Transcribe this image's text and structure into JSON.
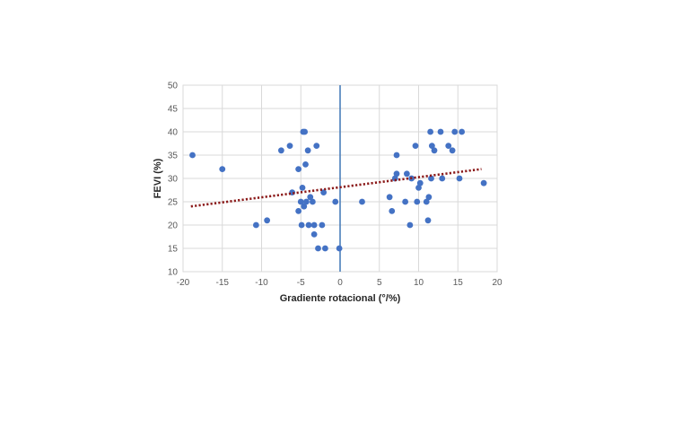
{
  "chart_data": {
    "type": "scatter",
    "xlabel": "Gradiente rotacional (°/%)",
    "ylabel": "FEVI (%)",
    "xlim": [
      -20,
      20
    ],
    "ylim": [
      10,
      50
    ],
    "xticks": [
      -20,
      -15,
      -10,
      -5,
      0,
      5,
      10,
      15,
      20
    ],
    "yticks": [
      10,
      15,
      20,
      25,
      30,
      35,
      40,
      45,
      50
    ],
    "grid": true,
    "legend": "none",
    "colors": {
      "points": "#4472c4",
      "trendline": "#8b1a1a",
      "zero_line": "#4a7ebb",
      "grid": "#d9d9d9"
    },
    "vertical_line_x": 0,
    "trendline": {
      "style": "dotted",
      "x": [
        -19,
        18
      ],
      "y": [
        24,
        32
      ]
    },
    "series": [
      {
        "points": [
          [
            -18.8,
            35
          ],
          [
            -15,
            32
          ],
          [
            -10.7,
            20
          ],
          [
            -9.3,
            21
          ],
          [
            -7.5,
            36
          ],
          [
            -6.4,
            37
          ],
          [
            -6.1,
            27
          ],
          [
            -5.3,
            32
          ],
          [
            -5.3,
            23
          ],
          [
            -5.0,
            25
          ],
          [
            -4.9,
            20
          ],
          [
            -4.8,
            28
          ],
          [
            -4.7,
            40
          ],
          [
            -4.5,
            40
          ],
          [
            -4.6,
            24
          ],
          [
            -4.4,
            33
          ],
          [
            -4.3,
            25
          ],
          [
            -4.1,
            36
          ],
          [
            -4.0,
            20
          ],
          [
            -3.8,
            26
          ],
          [
            -3.5,
            25
          ],
          [
            -3.3,
            18
          ],
          [
            -3.3,
            20
          ],
          [
            -3.0,
            37
          ],
          [
            -2.8,
            15
          ],
          [
            -2.3,
            20
          ],
          [
            -2.1,
            27
          ],
          [
            -1.9,
            15
          ],
          [
            -0.6,
            25
          ],
          [
            -0.1,
            15
          ],
          [
            2.8,
            25
          ],
          [
            6.3,
            26
          ],
          [
            6.6,
            23
          ],
          [
            7.0,
            30
          ],
          [
            7.2,
            31
          ],
          [
            7.2,
            35
          ],
          [
            8.3,
            25
          ],
          [
            8.5,
            31
          ],
          [
            8.9,
            20
          ],
          [
            9.1,
            30
          ],
          [
            9.6,
            37
          ],
          [
            9.8,
            25
          ],
          [
            10.0,
            28
          ],
          [
            10.2,
            29
          ],
          [
            11.0,
            25
          ],
          [
            11.2,
            21
          ],
          [
            11.3,
            26
          ],
          [
            11.5,
            40
          ],
          [
            11.6,
            30
          ],
          [
            11.7,
            37
          ],
          [
            12.0,
            36
          ],
          [
            12.8,
            40
          ],
          [
            13.0,
            30
          ],
          [
            13.8,
            37
          ],
          [
            14.3,
            36
          ],
          [
            14.6,
            40
          ],
          [
            15.2,
            30
          ],
          [
            15.5,
            40
          ],
          [
            18.3,
            29
          ]
        ]
      }
    ]
  }
}
